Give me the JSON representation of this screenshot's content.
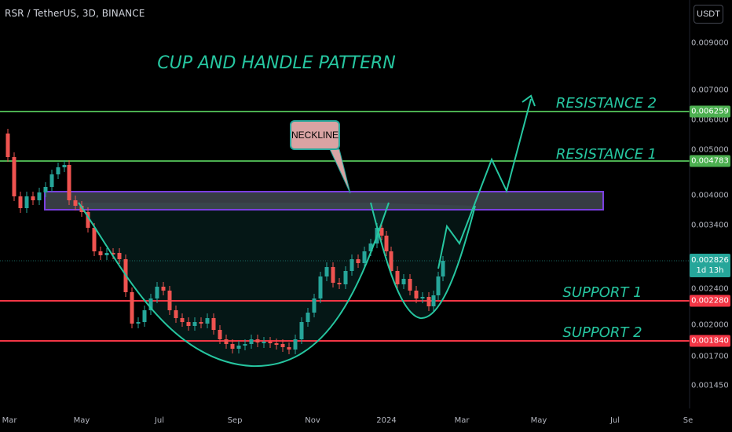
{
  "header": {
    "title": "RSR / TetherUS, 3D, BINANCE",
    "currency_button": "USDT"
  },
  "annotations": {
    "pattern_title": "CUP AND HANDLE PATTERN",
    "neckline": "NECKLINE",
    "resistance_2": "RESISTANCE 2",
    "resistance_1": "RESISTANCE 1",
    "support_1": "SUPPORT 1",
    "support_2": "SUPPORT 2"
  },
  "price_axis": [
    "0.009000",
    "0.007000",
    "0.006000",
    "0.005000",
    "0.004000",
    "0.003400",
    "0.002400",
    "0.002000",
    "0.001700",
    "0.001450"
  ],
  "price_tags": {
    "resistance_2": {
      "value": "0.006259",
      "color": "#4caf50"
    },
    "resistance_1": {
      "value": "0.004783",
      "color": "#4caf50"
    },
    "current": {
      "value": "0.002826",
      "countdown": "1d 13h",
      "color": "#26a69a"
    },
    "support_1": {
      "value": "0.002280",
      "color": "#f23645"
    },
    "support_2": {
      "value": "0.001840",
      "color": "#f23645"
    }
  },
  "time_axis": [
    "Mar",
    "May",
    "Jul",
    "Sep",
    "Nov",
    "2024",
    "Mar",
    "May",
    "Jul",
    "Se"
  ],
  "colors": {
    "up": "#26a69a",
    "down": "#ef5350",
    "resistance_line": "#4caf50",
    "support_line": "#f23645",
    "annotation": "#26c6a0",
    "zone": "#6b2fb3"
  }
}
